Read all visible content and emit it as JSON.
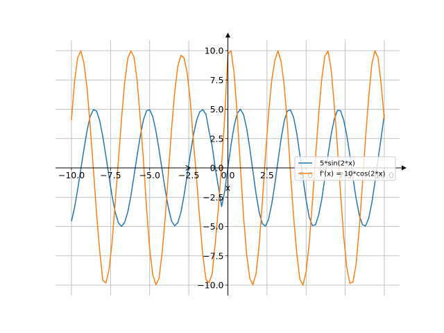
{
  "chart_data": {
    "type": "line",
    "title": "",
    "xlabel": "x",
    "ylabel": "",
    "xlim": [
      -10,
      10
    ],
    "ylim": [
      -10,
      10
    ],
    "grid": true,
    "legend_position": "center-right",
    "x_ticks": [
      -10.0,
      -7.5,
      -5.0,
      -2.5,
      0.0,
      2.5,
      5.0,
      7.5,
      10.0
    ],
    "x_tick_labels": [
      "−10.0",
      "−7.5",
      "−5.0",
      "−2.5",
      "0.0",
      "2.5",
      "5.0",
      "7.5",
      "10.0"
    ],
    "y_ticks": [
      -10.0,
      -7.5,
      -5.0,
      -2.5,
      0.0,
      2.5,
      5.0,
      7.5,
      10.0
    ],
    "y_tick_labels": [
      "−10.0",
      "−7.5",
      "−5.0",
      "−2.5",
      "0.0",
      "2.5",
      "5.0",
      "7.5",
      "10.0"
    ],
    "x": [
      -10.0,
      -9.8,
      -9.6,
      -9.4,
      -9.2,
      -9.0,
      -8.8,
      -8.6,
      -8.4,
      -8.2,
      -8.0,
      -7.8,
      -7.6,
      -7.4,
      -7.2,
      -7.0,
      -6.8,
      -6.6,
      -6.4,
      -6.2,
      -6.0,
      -5.8,
      -5.6,
      -5.4,
      -5.2,
      -5.0,
      -4.8,
      -4.6,
      -4.4,
      -4.2,
      -4.0,
      -3.8,
      -3.6,
      -3.4,
      -3.2,
      -3.0,
      -2.8,
      -2.6,
      -2.4,
      -2.2,
      -2.0,
      -1.8,
      -1.6,
      -1.4,
      -1.2,
      -1.0,
      -0.8,
      -0.6,
      -0.4,
      -0.2,
      0.0,
      0.2,
      0.4,
      0.6,
      0.8,
      1.0,
      1.2,
      1.4,
      1.6,
      1.8,
      2.0,
      2.2,
      2.4,
      2.6,
      2.8,
      3.0,
      3.2,
      3.4,
      3.6,
      3.8,
      4.0,
      4.2,
      4.4,
      4.6,
      4.8,
      5.0,
      5.2,
      5.4,
      5.6,
      5.8,
      6.0,
      6.2,
      6.4,
      6.6,
      6.8,
      7.0,
      7.2,
      7.4,
      7.6,
      7.8,
      8.0,
      8.2,
      8.4,
      8.6,
      8.8,
      9.0,
      9.2,
      9.4,
      9.6,
      9.8,
      10.0
    ],
    "series": [
      {
        "name": "5*sin(2*x)",
        "color": "#1f77b4",
        "values": [
          -4.56,
          -3.37,
          -1.82,
          -0.1,
          1.61,
          3.2,
          4.4,
          4.96,
          4.86,
          4.06,
          2.7,
          1.02,
          -0.74,
          -2.42,
          -3.79,
          -4.68,
          -4.99,
          -4.66,
          -3.76,
          -2.38,
          -0.67,
          1.07,
          2.73,
          4.09,
          4.87,
          4.96,
          4.36,
          3.14,
          1.55,
          -0.21,
          -1.94,
          -3.43,
          -4.54,
          -4.94,
          -4.67,
          -3.77,
          -2.33,
          -0.58,
          1.19,
          2.82,
          4.06,
          4.78,
          4.97,
          4.56,
          3.1,
          1.81,
          -0.08,
          -1.67,
          -3.3,
          -1.96,
          0.0,
          1.96,
          3.59,
          4.66,
          5.0,
          4.55,
          3.38,
          1.67,
          -0.29,
          -2.21,
          -3.78,
          -4.76,
          -4.97,
          -4.38,
          -3.1,
          -1.4,
          0.58,
          2.46,
          3.99,
          4.84,
          4.95,
          4.31,
          2.97,
          1.11,
          -0.87,
          -2.72,
          -4.2,
          -4.91,
          -4.86,
          -4.02,
          -2.68,
          -0.86,
          1.1,
          2.85,
          4.15,
          4.9,
          4.88,
          4.08,
          2.79,
          1.05,
          -0.89,
          -2.64,
          -4.03,
          -4.85,
          -4.95,
          -4.3,
          -2.98,
          -1.22,
          0.75,
          2.6,
          4.56
        ]
      },
      {
        "name": "f'(x) = 10*cos(2*x)",
        "color": "#ff7f0e",
        "values": [
          4.08,
          7.42,
          9.39,
          9.99,
          8.92,
          6.77,
          3.5,
          -0.06,
          -3.8,
          -7.01,
          -9.58,
          -9.82,
          -8.7,
          -6.3,
          -2.9,
          0.61,
          4.18,
          7.26,
          9.32,
          9.99,
          9.45,
          7.43,
          4.17,
          0.72,
          -3.44,
          -6.9,
          -9.13,
          -9.97,
          -9.41,
          -7.16,
          -4.15,
          -0.36,
          3.31,
          6.48,
          8.67,
          9.6,
          9.38,
          8.07,
          5.66,
          2.2,
          -0.92,
          -4.38,
          -7.49,
          -9.53,
          -9.8,
          -9.0,
          -6.31,
          -3.3,
          0.25,
          4.42,
          9.72,
          9.99,
          8.05,
          4.42,
          0.1,
          -4.16,
          -7.37,
          -9.42,
          -9.99,
          -9.03,
          -6.54,
          -2.93,
          1.03,
          4.65,
          7.48,
          9.16,
          9.98,
          9.06,
          7.03,
          3.74,
          -0.4,
          -4.15,
          -7.25,
          -9.49,
          -10.0,
          -8.87,
          -6.44,
          -2.97,
          0.83,
          4.51,
          7.6,
          9.54,
          9.97,
          8.41,
          5.35,
          1.82,
          -2.16,
          -5.83,
          -8.5,
          -9.85,
          -9.72,
          -8.17,
          -5.06,
          -1.36,
          2.54,
          6.01,
          8.84,
          9.98,
          9.4,
          7.1,
          4.08
        ]
      }
    ]
  }
}
